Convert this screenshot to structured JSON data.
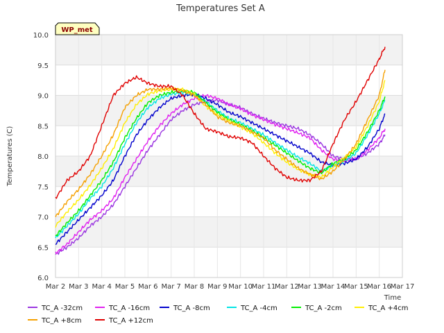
{
  "chart_data": {
    "type": "line",
    "title": "Temperatures Set A",
    "xlabel": "Time",
    "ylabel": "Temperatures (C)",
    "badge": "WP_met",
    "ylim": [
      6.0,
      10.0
    ],
    "xlim": [
      0,
      15
    ],
    "yticks": [
      "6.0",
      "6.5",
      "7.0",
      "7.5",
      "8.0",
      "8.5",
      "9.0",
      "9.5",
      "10.0"
    ],
    "xticks": [
      "Mar 2",
      "Mar 3",
      "Mar 4",
      "Mar 5",
      "Mar 6",
      "Mar 7",
      "Mar 8",
      "Mar 9",
      "Mar 10",
      "Mar 11",
      "Mar 12",
      "Mar 13",
      "Mar 14",
      "Mar 15",
      "Mar 16",
      "Mar 17"
    ],
    "x_day": [
      0,
      1,
      2,
      3,
      4,
      5,
      6,
      7,
      8,
      9,
      10,
      11,
      12,
      13,
      14,
      15
    ],
    "grid": true,
    "legend_position": "bottom",
    "series": [
      {
        "name": "TC_A -32cm",
        "color": "#9a35e0",
        "x": [
          0,
          0.5,
          1,
          1.5,
          2,
          2.5,
          3,
          3.5,
          4,
          4.5,
          5,
          5.5,
          6,
          6.5,
          7,
          7.5,
          8,
          8.5,
          9,
          9.5,
          10,
          10.5,
          11,
          11.5,
          12,
          12.5,
          13,
          13.5,
          14,
          14.25
        ],
        "y": [
          6.38,
          6.5,
          6.65,
          6.85,
          7.0,
          7.2,
          7.5,
          7.8,
          8.1,
          8.35,
          8.6,
          8.75,
          8.85,
          8.9,
          8.92,
          8.85,
          8.8,
          8.7,
          8.62,
          8.55,
          8.5,
          8.45,
          8.35,
          8.2,
          8.0,
          7.95,
          7.95,
          8.05,
          8.2,
          8.35
        ]
      },
      {
        "name": "TC_A +8cm",
        "color": "#f5a000",
        "x": [
          0,
          0.5,
          1,
          1.5,
          2,
          2.5,
          3,
          3.5,
          4,
          4.5,
          5,
          5.5,
          6,
          6.5,
          7,
          7.5,
          8,
          8.5,
          9,
          9.5,
          10,
          10.5,
          11,
          11.5,
          12,
          12.5,
          13,
          13.5,
          14,
          14.25
        ],
        "y": [
          7.0,
          7.25,
          7.45,
          7.7,
          8.0,
          8.35,
          8.8,
          9.0,
          9.1,
          9.1,
          9.12,
          9.08,
          9.0,
          8.85,
          8.65,
          8.55,
          8.5,
          8.4,
          8.3,
          8.1,
          7.95,
          7.8,
          7.7,
          7.62,
          7.75,
          7.95,
          8.2,
          8.6,
          9.0,
          9.42
        ]
      },
      {
        "name": "TC_A -16cm",
        "color": "#e020f0",
        "x": [
          0,
          0.5,
          1,
          1.5,
          2,
          2.5,
          3,
          3.5,
          4,
          4.5,
          5,
          5.5,
          6,
          6.5,
          7,
          7.5,
          8,
          8.5,
          9,
          9.5,
          10,
          10.5,
          11,
          11.5,
          12,
          12.5,
          13,
          13.5,
          14,
          14.25
        ],
        "y": [
          6.4,
          6.55,
          6.75,
          6.95,
          7.1,
          7.3,
          7.65,
          7.95,
          8.25,
          8.5,
          8.7,
          8.85,
          8.95,
          9.0,
          8.95,
          8.85,
          8.78,
          8.68,
          8.6,
          8.52,
          8.45,
          8.38,
          8.3,
          8.1,
          7.95,
          7.92,
          7.95,
          8.1,
          8.3,
          8.45
        ]
      },
      {
        "name": "TC_A +12cm",
        "color": "#e00000",
        "x": [
          0,
          0.5,
          1,
          1.5,
          2,
          2.5,
          3,
          3.5,
          4,
          4.5,
          5,
          5.5,
          6,
          6.5,
          7,
          7.5,
          8,
          8.5,
          9,
          9.5,
          10,
          10.5,
          11,
          11.5,
          12,
          12.5,
          13,
          13.5,
          14,
          14.25
        ],
        "y": [
          7.3,
          7.6,
          7.75,
          8.0,
          8.5,
          9.0,
          9.2,
          9.3,
          9.2,
          9.15,
          9.15,
          9.0,
          8.7,
          8.45,
          8.4,
          8.32,
          8.3,
          8.22,
          8.0,
          7.8,
          7.65,
          7.6,
          7.6,
          7.75,
          8.2,
          8.6,
          8.9,
          9.25,
          9.6,
          9.8
        ]
      },
      {
        "name": "TC_A -8cm",
        "color": "#0000cc",
        "x": [
          0,
          0.5,
          1,
          1.5,
          2,
          2.5,
          3,
          3.5,
          4,
          4.5,
          5,
          5.5,
          6,
          6.5,
          7,
          7.5,
          8,
          8.5,
          9,
          9.5,
          10,
          10.5,
          11,
          11.5,
          12,
          12.5,
          13,
          13.5,
          14,
          14.25
        ],
        "y": [
          6.55,
          6.75,
          6.95,
          7.15,
          7.35,
          7.6,
          8.0,
          8.35,
          8.6,
          8.8,
          8.95,
          9.0,
          9.02,
          8.95,
          8.85,
          8.72,
          8.65,
          8.55,
          8.45,
          8.35,
          8.25,
          8.15,
          8.05,
          7.9,
          7.85,
          7.88,
          7.95,
          8.15,
          8.45,
          8.7
        ]
      },
      {
        "name": "TC_A -4cm",
        "color": "#00e5e5",
        "x": [
          0,
          0.5,
          1,
          1.5,
          2,
          2.5,
          3,
          3.5,
          4,
          4.5,
          5,
          5.5,
          6,
          6.5,
          7,
          7.5,
          8,
          8.5,
          9,
          9.5,
          10,
          10.5,
          11,
          11.5,
          12,
          12.5,
          13,
          13.5,
          14,
          14.25
        ],
        "y": [
          6.65,
          6.85,
          7.05,
          7.3,
          7.5,
          7.8,
          8.2,
          8.55,
          8.8,
          8.95,
          9.02,
          9.05,
          9.02,
          8.9,
          8.75,
          8.62,
          8.55,
          8.45,
          8.35,
          8.22,
          8.1,
          7.98,
          7.88,
          7.75,
          7.85,
          7.92,
          8.05,
          8.35,
          8.7,
          8.92
        ]
      },
      {
        "name": "TC_A -2cm",
        "color": "#00ee00",
        "x": [
          0,
          0.5,
          1,
          1.5,
          2,
          2.5,
          3,
          3.5,
          4,
          4.5,
          5,
          5.5,
          6,
          6.5,
          7,
          7.5,
          8,
          8.5,
          9,
          9.5,
          10,
          10.5,
          11,
          11.5,
          12,
          12.5,
          13,
          13.5,
          14,
          14.25
        ],
        "y": [
          6.68,
          6.9,
          7.1,
          7.35,
          7.6,
          7.9,
          8.3,
          8.62,
          8.88,
          9.0,
          9.05,
          9.08,
          9.05,
          8.88,
          8.72,
          8.6,
          8.52,
          8.42,
          8.3,
          8.18,
          8.05,
          7.92,
          7.8,
          7.72,
          7.88,
          7.95,
          8.1,
          8.4,
          8.75,
          8.98
        ]
      },
      {
        "name": "TC_A +4cm",
        "color": "#ffee00",
        "x": [
          0,
          0.5,
          1,
          1.5,
          2,
          2.5,
          3,
          3.5,
          4,
          4.5,
          5,
          5.5,
          6,
          6.5,
          7,
          7.5,
          8,
          8.5,
          9,
          9.5,
          10,
          10.5,
          11,
          11.5,
          12,
          12.5,
          13,
          13.5,
          14,
          14.25
        ],
        "y": [
          6.85,
          7.08,
          7.28,
          7.52,
          7.8,
          8.12,
          8.55,
          8.85,
          9.02,
          9.08,
          9.1,
          9.1,
          9.02,
          8.82,
          8.68,
          8.58,
          8.48,
          8.38,
          8.22,
          8.05,
          7.9,
          7.78,
          7.7,
          7.65,
          7.82,
          7.98,
          8.15,
          8.5,
          8.9,
          9.25
        ]
      }
    ]
  }
}
